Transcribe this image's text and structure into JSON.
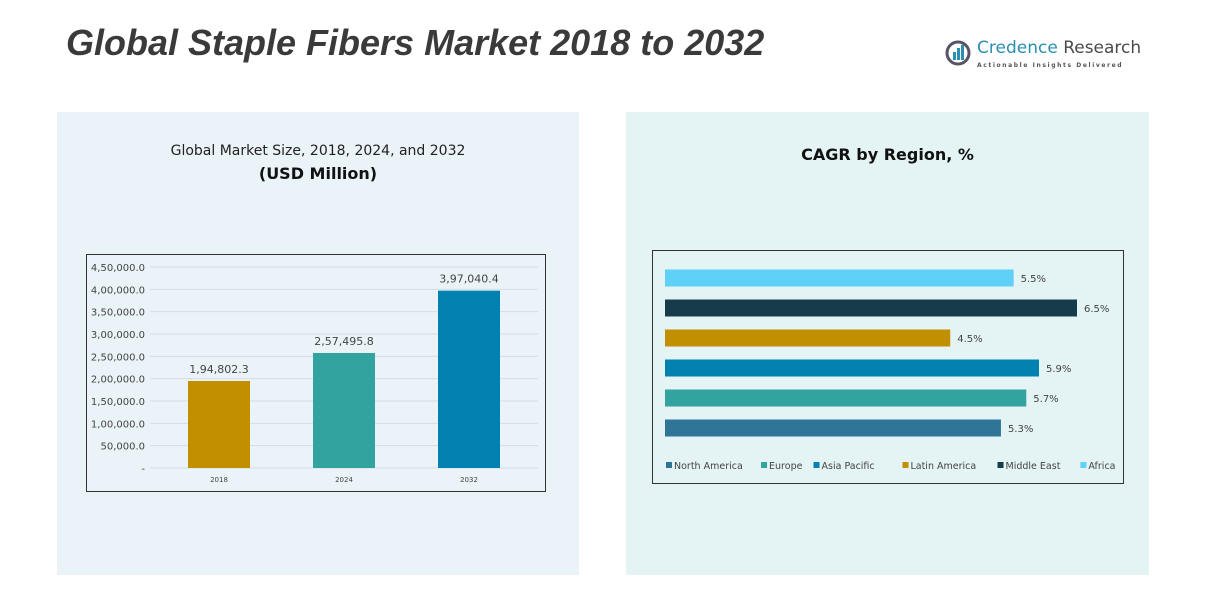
{
  "title": "Global Staple Fibers Market 2018 to 2032",
  "logo": {
    "name_a": "Credence",
    "name_b": "Research",
    "tagline": "Actionable Insights Delivered"
  },
  "chart_data": [
    {
      "type": "bar",
      "title": "Global Market Size, 2018, 2024, and 2032",
      "subtitle": "(USD Million)",
      "categories": [
        "2018",
        "2024",
        "2032"
      ],
      "values": [
        194802.3,
        257495.8,
        397040.4
      ],
      "value_labels": [
        "1,94,802.3",
        "2,57,495.8",
        "3,97,040.4"
      ],
      "colors": [
        "#c18f00",
        "#33a3a0",
        "#0081b0"
      ],
      "ylim": [
        0,
        450000
      ],
      "yticks": [
        "-",
        "50,000.0",
        "1,00,000.0",
        "1,50,000.0",
        "2,00,000.0",
        "2,50,000.0",
        "3,00,000.0",
        "3,50,000.0",
        "4,00,000.0",
        "4,50,000.0"
      ],
      "grid": true
    },
    {
      "type": "bar",
      "orientation": "horizontal",
      "title": "CAGR by Region, %",
      "categories": [
        "North America",
        "Europe",
        "Asia Pacific",
        "Latin America",
        "Middle East",
        "Africa"
      ],
      "values": [
        5.3,
        5.7,
        5.9,
        4.5,
        6.5,
        5.5
      ],
      "value_labels": [
        "5.3%",
        "5.7%",
        "5.9%",
        "4.5%",
        "6.5%",
        "5.5%"
      ],
      "colors": [
        "#2e7597",
        "#33a3a0",
        "#0081b0",
        "#c18f00",
        "#163c4c",
        "#5fd0f7"
      ],
      "legend": "bottom"
    }
  ]
}
